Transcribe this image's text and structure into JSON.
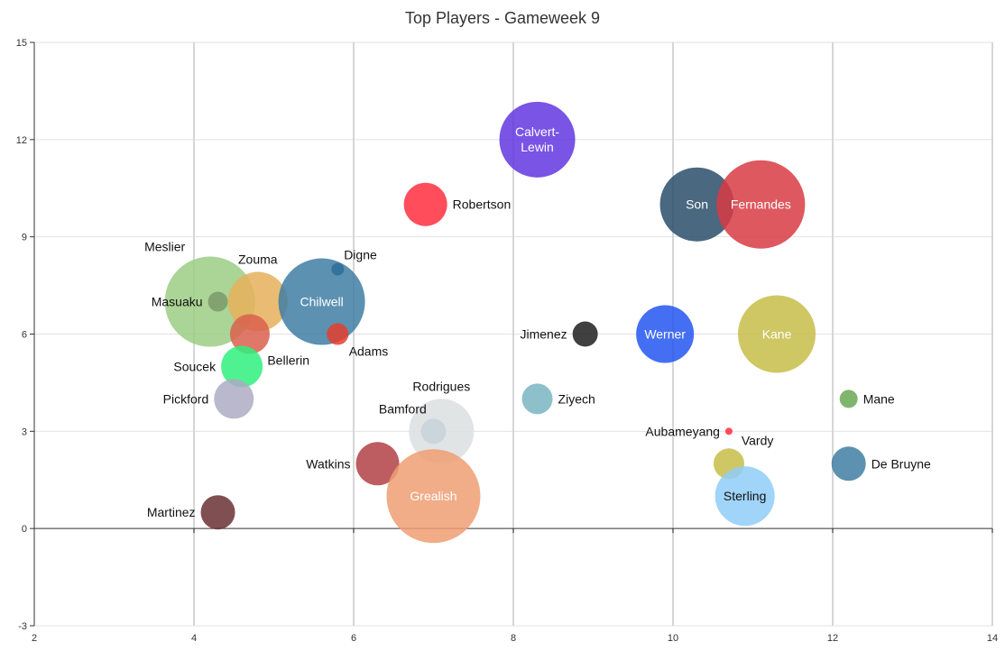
{
  "chart_data": {
    "type": "scatter",
    "title": "Top Players - Gameweek 9",
    "xlabel": "",
    "ylabel": "",
    "xlim": [
      2,
      14
    ],
    "ylim": [
      -3,
      15
    ],
    "xticks": [
      2,
      4,
      6,
      8,
      10,
      12,
      14
    ],
    "yticks": [
      -3,
      0,
      3,
      6,
      9,
      12,
      15
    ],
    "grid": true,
    "legend": "none",
    "points": [
      {
        "name": "Meslier",
        "x": 4.2,
        "y": 7,
        "size": 50,
        "color": "#9ccc85",
        "label": "above-left"
      },
      {
        "name": "Zouma",
        "x": 4.8,
        "y": 7,
        "size": 33,
        "color": "#e6b05a",
        "label": "above"
      },
      {
        "name": "Chilwell",
        "x": 5.6,
        "y": 7,
        "size": 48,
        "color": "#3f7ea3",
        "label": "inside"
      },
      {
        "name": "Masuaku",
        "x": 4.3,
        "y": 7,
        "size": 11,
        "color": "#7a9a68",
        "label": "left"
      },
      {
        "name": "Digne",
        "x": 5.8,
        "y": 8,
        "size": 7,
        "color": "#2e6d99",
        "label": "above-right"
      },
      {
        "name": "Adams",
        "x": 5.8,
        "y": 6,
        "size": 12,
        "color": "#e53d2e",
        "label": "below-right"
      },
      {
        "name": "Bellerin",
        "x": 4.7,
        "y": 6,
        "size": 22,
        "color": "#d9604d",
        "label": "below-right"
      },
      {
        "name": "Soucek",
        "x": 4.6,
        "y": 5,
        "size": 23,
        "color": "#2ff07d",
        "label": "left"
      },
      {
        "name": "Pickford",
        "x": 4.5,
        "y": 4,
        "size": 22,
        "color": "#adabc3",
        "label": "left"
      },
      {
        "name": "Martinez",
        "x": 4.3,
        "y": 0.5,
        "size": 19,
        "color": "#6a3032",
        "label": "left"
      },
      {
        "name": "Robertson",
        "x": 6.9,
        "y": 10,
        "size": 24,
        "color": "#ff2e3e",
        "label": "right"
      },
      {
        "name": "Calvert-Lewin",
        "x": 8.3,
        "y": 12,
        "size": 42,
        "color": "#6236e0",
        "label": "inside"
      },
      {
        "name": "Son",
        "x": 10.3,
        "y": 10,
        "size": 41,
        "color": "#2a4d68",
        "label": "inside"
      },
      {
        "name": "Fernandes",
        "x": 11.1,
        "y": 10,
        "size": 49,
        "color": "#d83b44",
        "label": "inside"
      },
      {
        "name": "Jimenez",
        "x": 8.9,
        "y": 6,
        "size": 14,
        "color": "#1e1e1e",
        "label": "left"
      },
      {
        "name": "Werner",
        "x": 9.9,
        "y": 6,
        "size": 32,
        "color": "#2456f0",
        "label": "inside"
      },
      {
        "name": "Kane",
        "x": 11.3,
        "y": 6,
        "size": 43,
        "color": "#c7bd48",
        "label": "inside"
      },
      {
        "name": "Ziyech",
        "x": 8.3,
        "y": 4,
        "size": 17,
        "color": "#7ab5c3",
        "label": "right"
      },
      {
        "name": "Mane",
        "x": 12.2,
        "y": 4,
        "size": 10,
        "color": "#6aa855",
        "label": "right"
      },
      {
        "name": "Aubameyang",
        "x": 10.7,
        "y": 3,
        "size": 4,
        "color": "#ff2e3e",
        "label": "left"
      },
      {
        "name": "Vardy",
        "x": 10.7,
        "y": 2,
        "size": 17,
        "color": "#c7bd48",
        "label": "above-right"
      },
      {
        "name": "De Bruyne",
        "x": 12.2,
        "y": 2,
        "size": 19,
        "color": "#3f7ea3",
        "label": "right"
      },
      {
        "name": "Sterling",
        "x": 10.9,
        "y": 1,
        "size": 33,
        "color": "#8fccf7",
        "label": "inside-dark"
      },
      {
        "name": "Rodrigues",
        "x": 7.1,
        "y": 3,
        "size": 36,
        "color": "#dcdfe0",
        "label": "above"
      },
      {
        "name": "Bamford",
        "x": 7.0,
        "y": 3,
        "size": 14,
        "color": "#c6d3da",
        "label": "above-left"
      },
      {
        "name": "Watkins",
        "x": 6.3,
        "y": 2,
        "size": 24,
        "color": "#b24045",
        "label": "left"
      },
      {
        "name": "Grealish",
        "x": 7.0,
        "y": 1,
        "size": 52,
        "color": "#ef9e73",
        "label": "inside"
      }
    ]
  }
}
